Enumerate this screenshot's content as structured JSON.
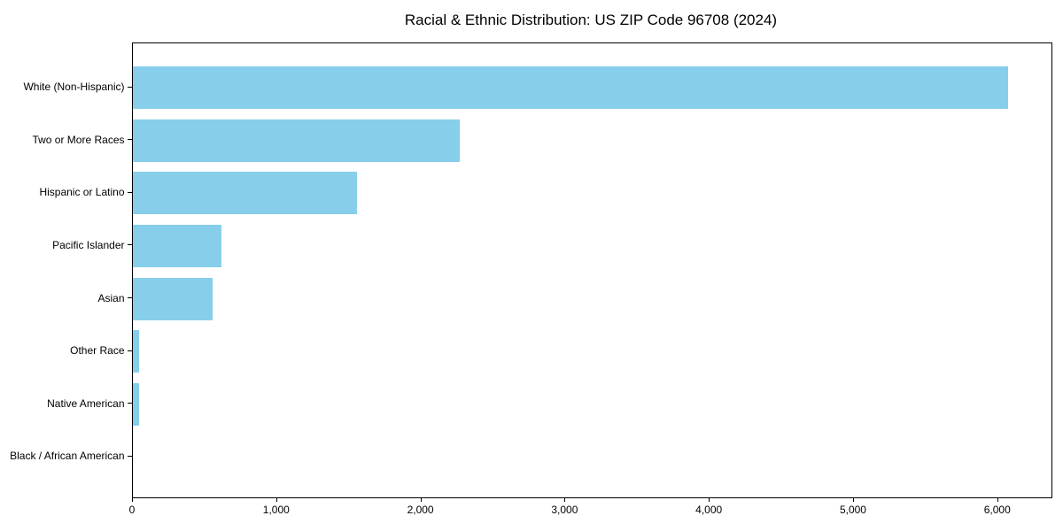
{
  "chart_data": {
    "type": "bar",
    "orientation": "horizontal",
    "title": "Racial & Ethnic Distribution: US ZIP Code 96708 (2024)",
    "categories": [
      "White (Non-Hispanic)",
      "Two or More Races",
      "Hispanic or Latino",
      "Pacific Islander",
      "Asian",
      "Other Race",
      "Native American",
      "Black / African American"
    ],
    "values": [
      6070,
      2270,
      1560,
      620,
      555,
      47,
      45,
      0
    ],
    "xlabel": "",
    "ylabel": "",
    "xlim": [
      0,
      6370
    ],
    "xticks": [
      0,
      1000,
      2000,
      3000,
      4000,
      5000,
      6000
    ],
    "xtick_labels": [
      "0",
      "1,000",
      "2,000",
      "3,000",
      "4,000",
      "5,000",
      "6,000"
    ],
    "bar_color": "#87CEEB",
    "frame_color": "#000000",
    "background_color": "#ffffff",
    "grid": false,
    "legend": null
  }
}
